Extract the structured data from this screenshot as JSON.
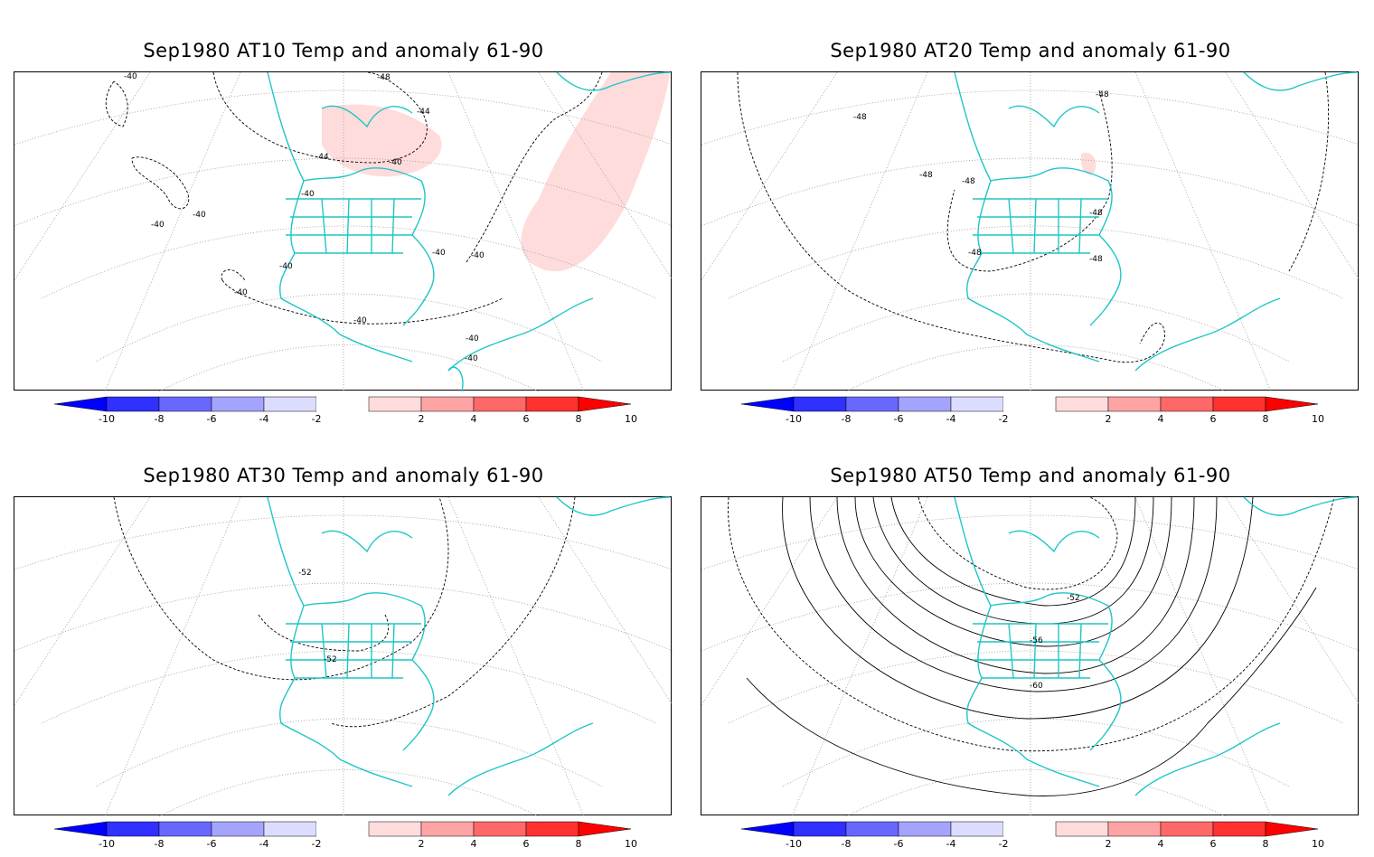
{
  "panels": [
    {
      "id": "at10",
      "title": "Sep1980 AT10 Temp and anomaly 61-90",
      "contour_labels": [
        "-40",
        "-48",
        "-44",
        "-44",
        "-40",
        "-40",
        "-40",
        "-40",
        "-40",
        "-40",
        "-40",
        "-40",
        "-40",
        "-40",
        "-40"
      ],
      "anomaly_shading": "positive 2-4 over Labrador Sea / Greenland / North Atlantic"
    },
    {
      "id": "at20",
      "title": "Sep1980 AT20 Temp and anomaly 61-90",
      "contour_labels": [
        "-48",
        "-48",
        "-48",
        "-48",
        "-48",
        "-48",
        "-48"
      ],
      "anomaly_shading": "small positive 2-4 near Hudson Bay"
    },
    {
      "id": "at30",
      "title": "Sep1980 AT30 Temp and anomaly 61-90",
      "contour_labels": [
        "-52",
        "-52"
      ],
      "anomaly_shading": "none"
    },
    {
      "id": "at50",
      "title": "Sep1980 AT50 Temp and anomaly 61-90",
      "contour_labels": [
        "-52",
        "-56",
        "-60"
      ],
      "anomaly_shading": "none"
    }
  ],
  "colorbar": {
    "ticks": [
      "-10",
      "-8",
      "-6",
      "-4",
      "-2",
      "2",
      "4",
      "6",
      "8",
      "10"
    ],
    "colors": {
      "lt_neg10": "#0000ff",
      "neg10_neg8": "#3030ff",
      "neg8_neg6": "#6868ff",
      "neg6_neg4": "#a4a4ff",
      "neg4_neg2": "#dcdcff",
      "neg2_2": "#ffffff",
      "2_4": "#ffdcdc",
      "4_6": "#ffa4a4",
      "6_8": "#ff6868",
      "8_10": "#ff3030",
      "gt_10": "#ff0000"
    }
  },
  "colors": {
    "coastline": "#1ec6c6",
    "contour": "#000000",
    "grid": "#999999"
  }
}
